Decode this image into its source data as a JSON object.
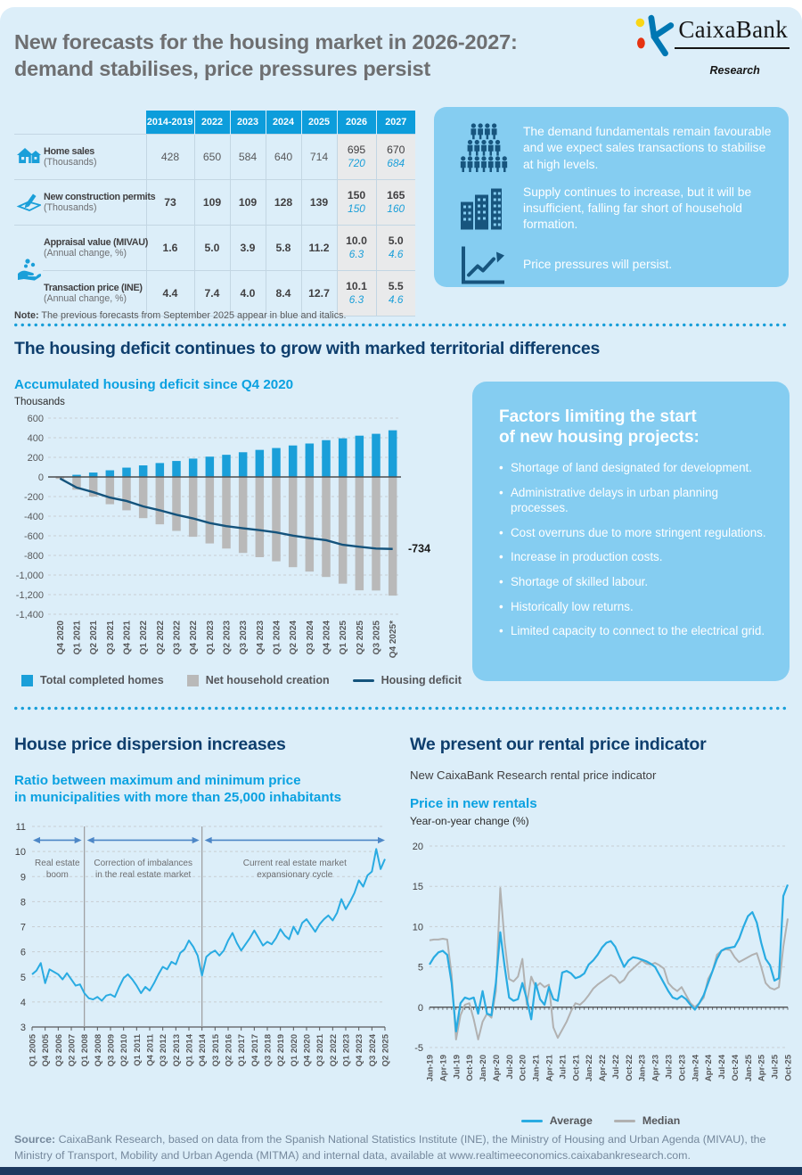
{
  "header": {
    "title_line1": "New forecasts for the housing market in 2026-2027:",
    "title_line2": "demand stabilises, price pressures persist",
    "logo_brand": "CaixaBank",
    "logo_sub": "Research"
  },
  "forecast_table": {
    "columns": [
      "2014-2019",
      "2022",
      "2023",
      "2024",
      "2025",
      "2026",
      "2027"
    ],
    "rows": [
      {
        "icon": "home-sales-icon",
        "rowspan": 1,
        "bold": false,
        "label": "Home sales",
        "sublabel": "(Thousands)",
        "values": [
          "428",
          "650",
          "584",
          "640",
          "714"
        ],
        "f2026": [
          "695",
          "720"
        ],
        "f2027": [
          "670",
          "684"
        ]
      },
      {
        "icon": "construction-permit-icon",
        "rowspan": 1,
        "bold": true,
        "label": "New construction permits",
        "sublabel": "(Thousands)",
        "values": [
          "73",
          "109",
          "109",
          "128",
          "139"
        ],
        "f2026": [
          "150",
          "150"
        ],
        "f2027": [
          "165",
          "160"
        ]
      },
      {
        "icon": "hand-coins-icon",
        "rowspan": 2,
        "bold": true,
        "label": "Appraisal value (MIVAU)",
        "sublabel": "(Annual change, %)",
        "values": [
          "1.6",
          "5.0",
          "3.9",
          "5.8",
          "11.2"
        ],
        "f2026": [
          "10.0",
          "6.3"
        ],
        "f2027": [
          "5.0",
          "4.6"
        ]
      },
      {
        "icon": null,
        "rowspan": 0,
        "bold": true,
        "label": "Transaction price (INE)",
        "sublabel": "(Annual change, %)",
        "values": [
          "4.4",
          "7.4",
          "4.0",
          "8.4",
          "12.7"
        ],
        "f2026": [
          "10.1",
          "6.3"
        ],
        "f2027": [
          "5.5",
          "4.6"
        ]
      }
    ],
    "note_label": "Note:",
    "note_text": " The previous forecasts from September 2025 appear in blue and italics."
  },
  "key_messages": [
    {
      "icon": "crowd-icon",
      "text": "The demand fundamentals remain favourable and we expect sales transactions to stabilise at high levels."
    },
    {
      "icon": "buildings-icon",
      "text": "Supply continues to increase, but it will be insufficient, falling far short of household formation."
    },
    {
      "icon": "chart-up-icon",
      "text": "Price pressures will persist."
    }
  ],
  "deficit_section": {
    "heading": "The housing deficit continues to grow with marked territorial differences",
    "chart_title": "Accumulated housing deficit since Q4 2020",
    "chart_units": "Thousands"
  },
  "factors_box": {
    "title_line1": "Factors limiting the start",
    "title_line2": "of new housing projects:",
    "items": [
      "Shortage of land designated for development.",
      "Administrative delays in urban planning processes.",
      "Cost overruns due to more stringent regulations.",
      "Increase in production costs.",
      "Shortage of skilled labour.",
      "Historically low returns.",
      "Limited capacity to connect to the electrical grid."
    ]
  },
  "dispersion_section": {
    "heading": "House price dispersion increases",
    "subtitle_line1": "Ratio between maximum and minimum price",
    "subtitle_line2": "in municipalities with more than 25,000 inhabitants"
  },
  "rental_section": {
    "heading": "We present our rental price indicator",
    "note": "New CaixaBank Research rental price indicator",
    "chart_title": "Price in new rentals",
    "chart_units": "Year-on-year change (%)"
  },
  "footer": {
    "source_label": "Source:",
    "source_text": " CaixaBank Research, based on data from the Spanish National Statistics Institute (INE), the Ministry of Housing and Urban Agenda (MIVAU), the Ministry of Transport, Mobility and Urban Agenda (MITMA) and internal data, available at www.realtimeeconomics.caixabankresearch.com."
  },
  "colors": {
    "page_bg": "#dceef9",
    "box_bg": "#85cdf1",
    "table_header": "#0d9ddb",
    "bar_blue": "#1a9fd9",
    "bar_gray": "#b9b9b9",
    "line_navy": "#14537c",
    "line_cyan": "#29abe2",
    "line_gray": "#b1b1b1",
    "heading_navy": "#0e3e6d",
    "heading_cyan": "#0aa1e1",
    "bottom_bar": "#1d3a60"
  },
  "chart_data": [
    {
      "type": "bar",
      "title": "Accumulated housing deficit since Q4 2020",
      "ylabel": "Thousands",
      "ylim": [
        -1400,
        600
      ],
      "ytick_step": 200,
      "grid": true,
      "legend_position": "bottom",
      "categories": [
        "Q4 2020",
        "Q1 2021",
        "Q2 2021",
        "Q3 2021",
        "Q4 2021",
        "Q1 2022",
        "Q2 2022",
        "Q3 2022",
        "Q4 2022",
        "Q1 2023",
        "Q2 2023",
        "Q3 2023",
        "Q4 2023",
        "Q1 2024",
        "Q2 2024",
        "Q3 2024",
        "Q4 2024",
        "Q1 2025",
        "Q2 2025",
        "Q3 2025",
        "Q4 2025*"
      ],
      "series": [
        {
          "name": "Total completed homes",
          "type": "bar",
          "color": "#1a9fd9",
          "values": [
            5,
            22,
            45,
            68,
            95,
            118,
            142,
            163,
            187,
            207,
            226,
            252,
            276,
            295,
            321,
            341,
            375,
            394,
            421,
            440,
            476
          ]
        },
        {
          "name": "Net household creation",
          "type": "bar",
          "color": "#b9b9b9",
          "values": [
            -20,
            -130,
            -200,
            -278,
            -340,
            -420,
            -483,
            -550,
            -610,
            -678,
            -730,
            -775,
            -818,
            -860,
            -920,
            -965,
            -1020,
            -1088,
            -1156,
            -1158,
            -1210
          ]
        },
        {
          "name": "Housing deficit",
          "type": "line",
          "color": "#14537c",
          "values": [
            -15,
            -108,
            -155,
            -210,
            -245,
            -300,
            -340,
            -386,
            -423,
            -470,
            -502,
            -523,
            -543,
            -565,
            -598,
            -623,
            -645,
            -692,
            -712,
            -730,
            -734
          ]
        }
      ],
      "end_label": "-734"
    },
    {
      "type": "line",
      "title": "Ratio between maximum and minimum price in municipalities with more than 25,000 inhabitants",
      "ylim": [
        3,
        11
      ],
      "ytick_step": 1,
      "grid": true,
      "color": "#29abe2",
      "x_labels": [
        "Q1 2005",
        "Q4 2005",
        "Q3 2006",
        "Q2 2007",
        "Q1 2008",
        "Q4 2008",
        "Q3 2009",
        "Q2 2010",
        "Q1 2011",
        "Q4 2011",
        "Q3 2012",
        "Q2 2013",
        "Q1 2014",
        "Q4 2014",
        "Q3 2015",
        "Q2 2016",
        "Q1 2017",
        "Q4 2017",
        "Q3 2018",
        "Q2 2019",
        "Q1 2020",
        "Q4 2020",
        "Q3 2021",
        "Q2 2022",
        "Q1 2023",
        "Q4 2023",
        "Q3 2024",
        "Q2 2025"
      ],
      "label_every": 3,
      "values": [
        5.1,
        5.25,
        5.55,
        4.75,
        5.3,
        5.2,
        5.1,
        4.9,
        5.15,
        4.9,
        4.65,
        4.7,
        4.35,
        4.15,
        4.1,
        4.2,
        4.05,
        4.25,
        4.3,
        4.2,
        4.6,
        4.95,
        5.1,
        4.9,
        4.65,
        4.35,
        4.6,
        4.45,
        4.75,
        5.1,
        5.4,
        5.3,
        5.6,
        5.5,
        5.95,
        6.1,
        6.45,
        6.2,
        5.85,
        5.05,
        5.8,
        5.95,
        6.05,
        5.85,
        6.05,
        6.45,
        6.75,
        6.35,
        6.05,
        6.3,
        6.55,
        6.85,
        6.55,
        6.25,
        6.4,
        6.3,
        6.55,
        6.9,
        6.65,
        6.5,
        7.0,
        6.7,
        7.15,
        7.3,
        7.05,
        6.8,
        7.1,
        7.3,
        7.45,
        7.25,
        7.55,
        8.1,
        7.7,
        8.0,
        8.35,
        8.85,
        8.6,
        9.05,
        9.2,
        10.1,
        9.3,
        9.7
      ],
      "dividers": [
        12,
        39
      ],
      "annotations": [
        {
          "from": 0,
          "to": 12,
          "lines": [
            "Real estate",
            "boom"
          ]
        },
        {
          "from": 12,
          "to": 39,
          "lines": [
            "Correction of imbalances",
            "in the real estate market"
          ]
        },
        {
          "from": 39,
          "to": 81,
          "lines": [
            "Current real estate market",
            "expansionary cycle"
          ]
        }
      ]
    },
    {
      "type": "line",
      "title": "Price in new rentals",
      "ylabel": "Year-on-year change (%)",
      "ylim": [
        -5,
        20
      ],
      "ytick_step": 5,
      "grid": true,
      "legend_position": "bottom",
      "x_labels": [
        "Jan-19",
        "Apr-19",
        "Jul-19",
        "Oct-19",
        "Jan-20",
        "Apr-20",
        "Jul-20",
        "Oct-20",
        "Jan-21",
        "Apr-21",
        "Jul-21",
        "Oct-21",
        "Jan-22",
        "Apr-22",
        "Jul-22",
        "Oct-22",
        "Jan-23",
        "Apr-23",
        "Jul-23",
        "Oct-23",
        "Jan-24",
        "Apr-24",
        "Jul-24",
        "Oct-24",
        "Jan-25",
        "Apr-25",
        "Jul-25",
        "Oct-25"
      ],
      "label_every": 3,
      "series": [
        {
          "name": "Average",
          "color": "#29abe2",
          "values": [
            5.3,
            6.2,
            6.8,
            7.0,
            6.5,
            3.0,
            -3.0,
            0.5,
            1.2,
            1.0,
            1.2,
            -0.8,
            2.0,
            -0.8,
            -1.0,
            3.0,
            9.3,
            5.0,
            1.2,
            0.8,
            1.0,
            3.0,
            1.0,
            -1.5,
            3.0,
            1.0,
            0.3,
            2.5,
            1.0,
            0.8,
            4.3,
            4.5,
            4.2,
            3.6,
            3.8,
            4.2,
            5.3,
            5.8,
            6.5,
            7.4,
            8.0,
            8.2,
            7.5,
            6.2,
            5.0,
            5.8,
            6.2,
            6.1,
            5.9,
            5.7,
            5.4,
            5.0,
            4.0,
            3.0,
            2.0,
            1.2,
            1.0,
            1.4,
            1.0,
            0.3,
            -0.3,
            0.5,
            1.5,
            3.0,
            4.5,
            6.0,
            7.0,
            7.3,
            7.4,
            7.5,
            8.5,
            10.0,
            11.3,
            11.8,
            10.5,
            8.0,
            6.0,
            5.2,
            3.3,
            3.6,
            13.8,
            15.2
          ]
        },
        {
          "name": "Median",
          "color": "#b1b1b1",
          "values": [
            8.3,
            8.4,
            8.4,
            8.5,
            8.4,
            4.0,
            -4.0,
            -1.0,
            0.3,
            0.5,
            -1.5,
            -4.0,
            -1.8,
            -0.8,
            -1.3,
            2.0,
            14.8,
            8.0,
            3.5,
            3.2,
            3.8,
            6.0,
            0.3,
            3.8,
            2.5,
            3.0,
            2.5,
            2.8,
            -2.5,
            -3.8,
            -2.8,
            -1.8,
            -0.5,
            0.5,
            0.3,
            0.8,
            1.5,
            2.3,
            2.8,
            3.2,
            3.6,
            4.0,
            3.7,
            3.0,
            3.4,
            4.3,
            4.8,
            5.3,
            5.8,
            5.4,
            5.3,
            5.5,
            5.2,
            4.8,
            3.0,
            2.4,
            2.0,
            2.5,
            1.5,
            0.5,
            0.0,
            0.5,
            1.2,
            3.5,
            4.5,
            6.5,
            7.0,
            7.2,
            7.1,
            6.2,
            5.6,
            5.9,
            6.2,
            6.5,
            6.7,
            5.0,
            3.0,
            2.4,
            2.2,
            2.5,
            7.5,
            11.0
          ]
        }
      ]
    }
  ]
}
